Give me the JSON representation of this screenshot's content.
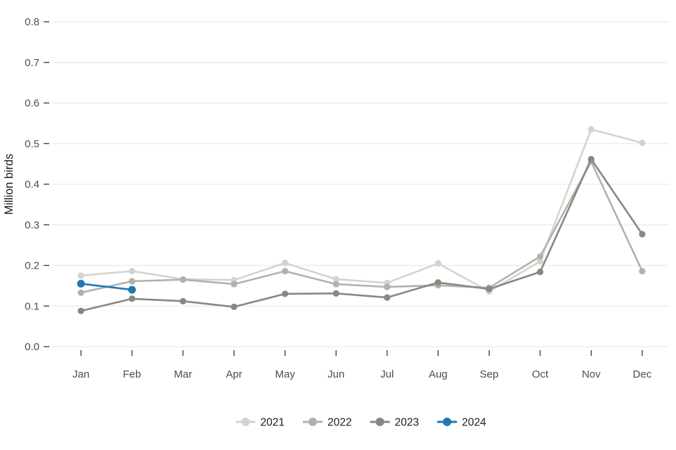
{
  "chart_data": {
    "type": "line",
    "title": "",
    "xlabel": "",
    "ylabel": "Million birds",
    "ylim": [
      0.0,
      0.8
    ],
    "yticks": [
      0.0,
      0.1,
      0.2,
      0.3,
      0.4,
      0.5,
      0.6,
      0.7,
      0.8
    ],
    "grid": true,
    "legend_position": "bottom",
    "categories": [
      "Jan",
      "Feb",
      "Mar",
      "Apr",
      "May",
      "Jun",
      "Jul",
      "Aug",
      "Sep",
      "Oct",
      "Nov",
      "Dec"
    ],
    "series": [
      {
        "name": "2021",
        "color": "#d6d3ce",
        "point_radius": 4.6,
        "values": [
          0.175,
          0.186,
          0.166,
          0.164,
          0.206,
          0.166,
          0.157,
          0.205,
          0.136,
          0.21,
          0.535,
          0.502
        ]
      },
      {
        "name": "2022",
        "color": "#b4b1ac",
        "point_radius": 4.6,
        "values": [
          0.133,
          0.161,
          0.165,
          0.154,
          0.186,
          0.154,
          0.147,
          0.151,
          0.145,
          0.222,
          0.456,
          0.186
        ]
      },
      {
        "name": "2023",
        "color": "#8a8781",
        "point_radius": 4.6,
        "values": [
          0.088,
          0.118,
          0.112,
          0.098,
          0.13,
          0.131,
          0.121,
          0.158,
          0.142,
          0.184,
          0.462,
          0.277
        ]
      },
      {
        "name": "2024",
        "color": "#2077b4",
        "point_radius": 5.5,
        "values": [
          0.155,
          0.14,
          null,
          null,
          null,
          null,
          null,
          null,
          null,
          null,
          null,
          null
        ]
      }
    ],
    "style": {
      "grid_color": "#e9e9e9",
      "tick_color": "#333333",
      "text_color": "#4d4d4d",
      "title_color": "#1a1a1a",
      "background": "#ffffff"
    }
  }
}
